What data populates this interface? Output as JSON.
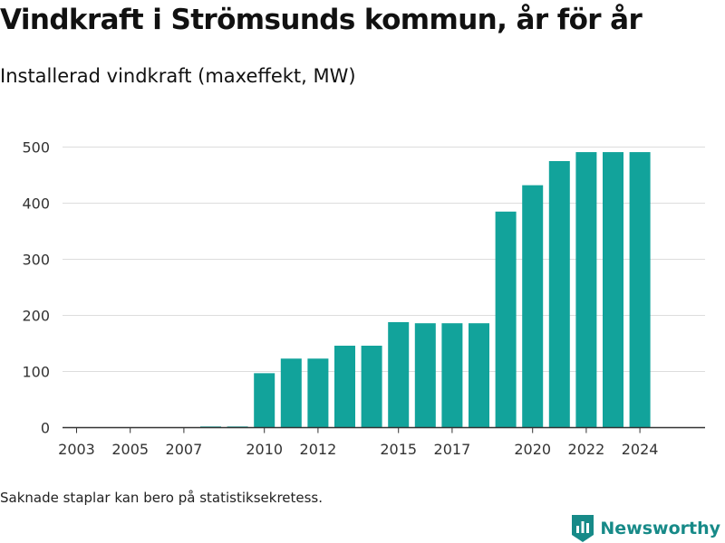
{
  "title": "Vindkraft i Strömsunds kommun, år för år",
  "subtitle": "Installerad vindkraft (maxeffekt, MW)",
  "footnote": "Saknade staplar kan bero på statistiksekretess.",
  "brand": {
    "name": "Newsworthy",
    "color": "#178a88"
  },
  "colors": {
    "bar": "#12a39b",
    "grid": "#dddddd",
    "axis": "#333333",
    "text": "#333333"
  },
  "chart_data": {
    "type": "bar",
    "title": "Vindkraft i Strömsunds kommun, år för år",
    "subtitle": "Installerad vindkraft (maxeffekt, MW)",
    "xlabel": "",
    "ylabel": "",
    "categories": [
      "2003",
      "2004",
      "2005",
      "2006",
      "2007",
      "2008",
      "2009",
      "2010",
      "2011",
      "2012",
      "2013",
      "2014",
      "2015",
      "2016",
      "2017",
      "2018",
      "2019",
      "2020",
      "2021",
      "2022",
      "2023",
      "2024"
    ],
    "values": [
      0,
      0,
      0,
      0,
      0,
      2,
      2,
      97,
      123,
      123,
      146,
      146,
      188,
      186,
      186,
      186,
      385,
      432,
      475,
      491,
      491,
      491
    ],
    "x_tick_labels": [
      "2003",
      "2005",
      "2007",
      "2010",
      "2012",
      "2015",
      "2017",
      "2020",
      "2022",
      "2024"
    ],
    "y_ticks": [
      0,
      100,
      200,
      300,
      400,
      500
    ],
    "ylim": [
      0,
      520
    ],
    "grid": true,
    "legend": "none"
  }
}
